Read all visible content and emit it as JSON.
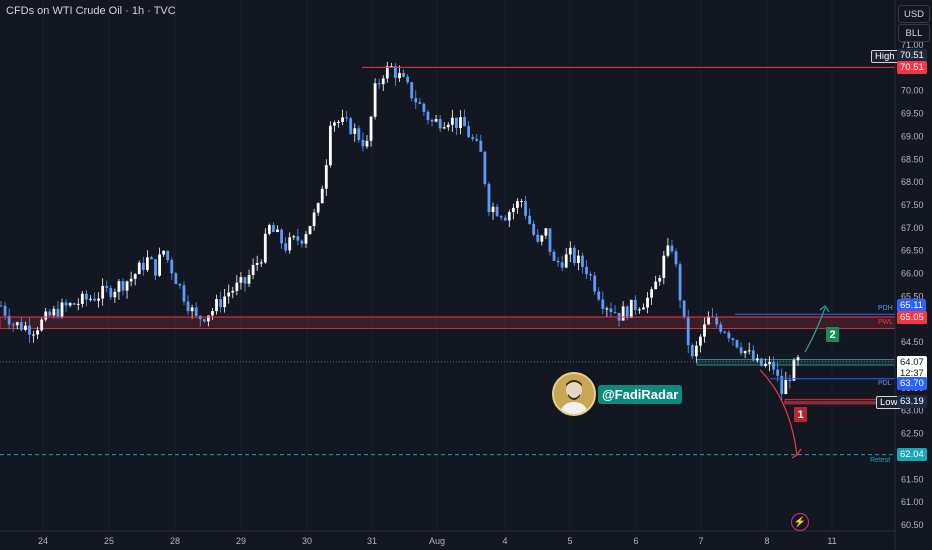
{
  "header": {
    "title": "CFDs on WTI Crude Oil · 1h · TVC"
  },
  "scale_buttons": {
    "currency": "USD",
    "unit": "BLL"
  },
  "brand": {
    "handle": "@FadiRadar"
  },
  "markers": {
    "down_label": "1",
    "up_label": "2"
  },
  "price_tags": {
    "high_label": "High",
    "high_value": "70.51",
    "pdh_label": "PDH",
    "pdh_value": "65.11",
    "pwl_label": "PWL",
    "pwl_value": "65.05",
    "last_value": "64.07",
    "countdown": "12:37",
    "pdl_label": "PDL",
    "pdl_value": "63.70",
    "low_label": "Low",
    "low_value": "63.19",
    "retest_label": "Retest",
    "retest_value": "62.04"
  },
  "colors": {
    "background": "#131722",
    "up_candle": "#ffffff",
    "down_candle": "#5b9cf6",
    "resistance": "#f23645",
    "support": "#26a69a",
    "accent": "#2962ff"
  },
  "chart_data": {
    "type": "candlestick",
    "title": "CFDs on WTI Crude Oil · 1h · TVC",
    "ylim": [
      60.3,
      71.2
    ],
    "y_ticks": [
      60.5,
      61.0,
      61.5,
      62.0,
      62.5,
      63.0,
      63.5,
      64.0,
      64.5,
      65.0,
      65.5,
      66.0,
      66.5,
      67.0,
      67.5,
      68.0,
      68.5,
      69.0,
      69.5,
      70.0,
      70.5,
      71.0
    ],
    "x_ticks": [
      "24",
      "25",
      "28",
      "29",
      "30",
      "31",
      "Aug",
      "4",
      "5",
      "6",
      "7",
      "8",
      "11"
    ],
    "close_path": [
      [
        0,
        65.3
      ],
      [
        3,
        64.9
      ],
      [
        8,
        64.8
      ],
      [
        14,
        65.2
      ],
      [
        20,
        65.4
      ],
      [
        26,
        65.6
      ],
      [
        32,
        65.9
      ],
      [
        36,
        66.3
      ],
      [
        38,
        66.1
      ],
      [
        40,
        66.5
      ],
      [
        44,
        65.7
      ],
      [
        48,
        65.0
      ],
      [
        52,
        65.2
      ],
      [
        56,
        65.6
      ],
      [
        60,
        65.8
      ],
      [
        64,
        66.4
      ],
      [
        66,
        67.0
      ],
      [
        70,
        66.6
      ],
      [
        74,
        66.8
      ],
      [
        78,
        67.4
      ],
      [
        80,
        68.5
      ],
      [
        81,
        69.4
      ],
      [
        86,
        69.2
      ],
      [
        90,
        68.8
      ],
      [
        92,
        70.0
      ],
      [
        94,
        70.4
      ],
      [
        96,
        70.5
      ],
      [
        98,
        70.3
      ],
      [
        102,
        69.8
      ],
      [
        106,
        69.3
      ],
      [
        110,
        69.4
      ],
      [
        114,
        69.2
      ],
      [
        118,
        68.6
      ],
      [
        120,
        67.5
      ],
      [
        124,
        67.3
      ],
      [
        128,
        67.6
      ],
      [
        132,
        66.6
      ],
      [
        134,
        66.9
      ],
      [
        136,
        66.2
      ],
      [
        140,
        66.4
      ],
      [
        144,
        66.1
      ],
      [
        148,
        65.4
      ],
      [
        152,
        65.1
      ],
      [
        156,
        65.3
      ],
      [
        160,
        65.5
      ],
      [
        163,
        66.3
      ],
      [
        165,
        66.6
      ],
      [
        166,
        66.1
      ],
      [
        168,
        64.9
      ],
      [
        170,
        64.1
      ],
      [
        172,
        64.6
      ],
      [
        174,
        65.0
      ],
      [
        178,
        64.8
      ],
      [
        182,
        64.4
      ],
      [
        186,
        64.0
      ],
      [
        190,
        63.95
      ],
      [
        192,
        63.4
      ],
      [
        194,
        63.8
      ],
      [
        196,
        64.07
      ]
    ],
    "levels": [
      {
        "name": "High",
        "value": 70.51
      },
      {
        "name": "PDH",
        "value": 65.11
      },
      {
        "name": "PWL",
        "value": 65.05
      },
      {
        "name": "PDL",
        "value": 63.7
      },
      {
        "name": "Low",
        "value": 63.19
      },
      {
        "name": "Retest",
        "value": 62.04
      }
    ],
    "zones": [
      {
        "type": "resistance",
        "from": 64.8,
        "to": 65.05
      },
      {
        "type": "support",
        "from": 64.0,
        "to": 64.12
      },
      {
        "type": "support",
        "from": 63.15,
        "to": 63.25
      }
    ],
    "last_price": 64.07,
    "scenarios": [
      {
        "label": "1",
        "direction": "down",
        "target": 62.04
      },
      {
        "label": "2",
        "direction": "up",
        "target": 65.45
      }
    ]
  }
}
